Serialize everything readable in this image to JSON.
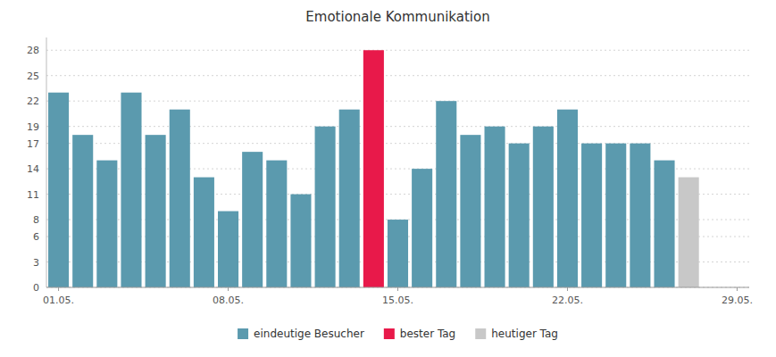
{
  "chart_data": {
    "type": "bar",
    "title": "Emotionale Kommunikation",
    "categories": [
      "01.05.",
      null,
      null,
      null,
      null,
      null,
      null,
      "08.05.",
      null,
      null,
      null,
      null,
      null,
      null,
      "15.05.",
      null,
      null,
      null,
      null,
      null,
      null,
      "22.05.",
      null,
      null,
      null,
      null,
      null,
      null,
      "29.05."
    ],
    "series": [
      {
        "name": "eindeutige Besucher",
        "color": "#5b9aae",
        "values": [
          23,
          18,
          15,
          23,
          18,
          21,
          13,
          9,
          16,
          15,
          11,
          19,
          21,
          null,
          8,
          14,
          22,
          18,
          19,
          17,
          19,
          21,
          17,
          17,
          17,
          15,
          null,
          null,
          null
        ]
      },
      {
        "name": "bester Tag",
        "color": "#e8194a",
        "values": [
          null,
          null,
          null,
          null,
          null,
          null,
          null,
          null,
          null,
          null,
          null,
          null,
          null,
          28,
          null,
          null,
          null,
          null,
          null,
          null,
          null,
          null,
          null,
          null,
          null,
          null,
          null,
          null,
          null
        ]
      },
      {
        "name": "heutiger Tag",
        "color": "#c8c8c8",
        "values": [
          null,
          null,
          null,
          null,
          null,
          null,
          null,
          null,
          null,
          null,
          null,
          null,
          null,
          null,
          null,
          null,
          null,
          null,
          null,
          null,
          null,
          null,
          null,
          null,
          null,
          null,
          13,
          null,
          null
        ]
      }
    ],
    "stacked": true,
    "ylim": [
      0,
      29.5
    ],
    "yticks": [
      0,
      3,
      6,
      8,
      11,
      14,
      17,
      19,
      22,
      25,
      28
    ],
    "grid": true,
    "legend": "bottom"
  }
}
